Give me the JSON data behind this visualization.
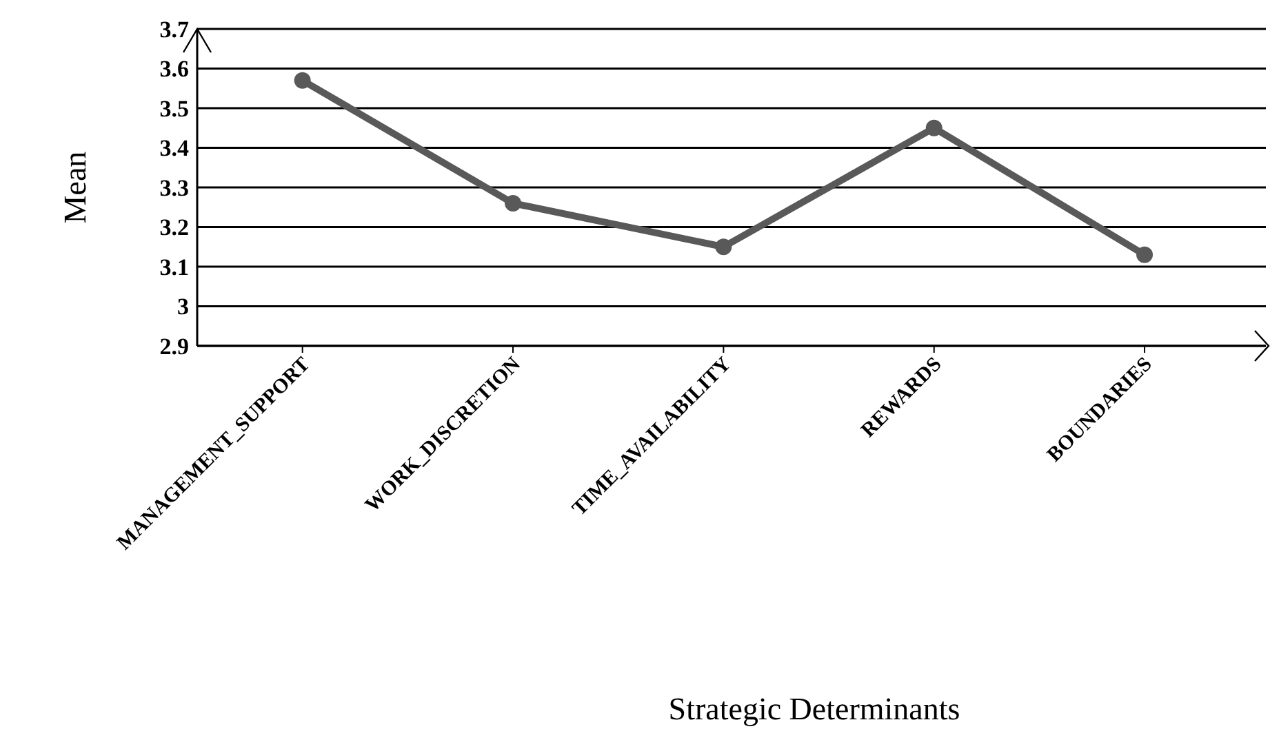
{
  "chart_data": {
    "type": "line",
    "xlabel": "Strategic Determinants",
    "ylabel": "Mean",
    "categories": [
      "MANAGEMENT_SUPPORT",
      "WORK_DISCRETION",
      "TIME_AVAILABILITY",
      "REWARDS",
      "BOUNDARIES"
    ],
    "series": [
      {
        "color": "#595959",
        "values": [
          3.57,
          3.26,
          3.15,
          3.45,
          3.13
        ]
      }
    ],
    "ylim": [
      2.9,
      3.7
    ],
    "yticks": [
      {
        "value": 2.9,
        "label": "2.9"
      },
      {
        "value": 3,
        "label": "3"
      },
      {
        "value": 3.1,
        "label": "3.1"
      },
      {
        "value": 3.2,
        "label": "3.2"
      },
      {
        "value": 3.3,
        "label": "3.3"
      },
      {
        "value": 3.4,
        "label": "3.4"
      },
      {
        "value": 3.5,
        "label": "3.5"
      },
      {
        "value": 3.6,
        "label": "3.6"
      },
      {
        "value": 3.7,
        "label": "3.7"
      }
    ],
    "grid": "y",
    "marker": "circle",
    "line_style": "solid"
  }
}
